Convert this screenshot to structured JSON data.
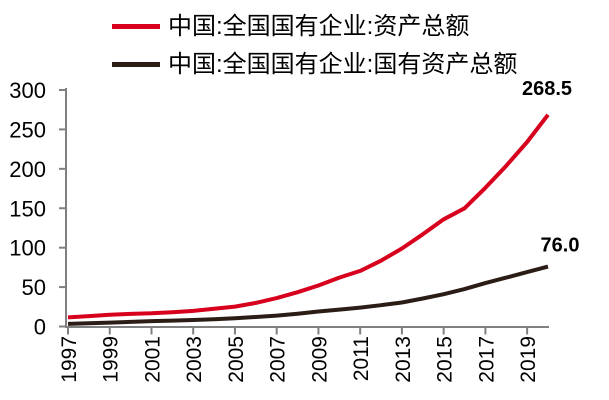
{
  "chart_data": {
    "type": "line",
    "title": "",
    "xlabel": "",
    "ylabel": "",
    "grid": false,
    "legend_position": "top-left",
    "axis_color": "#808080",
    "tick_label_color": "#000000",
    "end_label_color": "#000000",
    "ylim": [
      0,
      300
    ],
    "y_ticks": [
      0,
      50,
      100,
      150,
      200,
      250,
      300
    ],
    "x": [
      1997,
      1998,
      1999,
      2000,
      2001,
      2002,
      2003,
      2004,
      2005,
      2006,
      2007,
      2008,
      2009,
      2010,
      2011,
      2012,
      2013,
      2014,
      2015,
      2016,
      2017,
      2018,
      2019,
      2020
    ],
    "x_tick_years": [
      1997,
      1999,
      2001,
      2003,
      2005,
      2007,
      2009,
      2011,
      2013,
      2015,
      2017,
      2019
    ],
    "x_tick_labels": [
      "1997",
      "1999",
      "2001",
      "2003",
      "2005",
      "2007",
      "2009",
      "2011",
      "2013",
      "2015",
      "2017",
      "2019"
    ],
    "series": [
      {
        "name": "中国:全国国有企业:资产总额",
        "color": "#d7001d",
        "end_label": "268.5",
        "values": [
          11.5,
          13.2,
          14.9,
          16.0,
          16.8,
          18.2,
          19.8,
          22.4,
          25.3,
          30.0,
          36.0,
          43.5,
          52.0,
          62.0,
          70.5,
          83.5,
          99.0,
          117.0,
          136.0,
          150.0,
          176.0,
          204.0,
          234.0,
          268.5
        ]
      },
      {
        "name": "中国:全国国有企业:国有资产总额",
        "color": "#2b1d16",
        "end_label": "76.0",
        "values": [
          3.3,
          4.1,
          4.9,
          5.8,
          6.8,
          7.5,
          8.3,
          9.3,
          10.4,
          12.0,
          13.8,
          16.3,
          19.0,
          21.5,
          24.0,
          27.0,
          30.5,
          35.5,
          41.0,
          47.5,
          55.0,
          62.0,
          69.0,
          76.0
        ]
      }
    ]
  }
}
